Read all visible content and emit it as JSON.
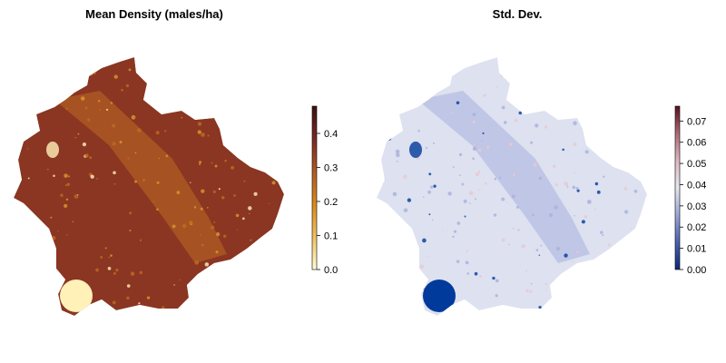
{
  "panels": [
    {
      "title": "Mean Density (males/ha)",
      "colorbar": {
        "ticks": [
          {
            "label": "0.0",
            "value": 0.0
          },
          {
            "label": "0.1",
            "value": 0.1
          },
          {
            "label": "0.2",
            "value": 0.2
          },
          {
            "label": "0.3",
            "value": 0.3
          },
          {
            "label": "0.4",
            "value": 0.4
          }
        ],
        "min": 0.0,
        "max": 0.48,
        "gradient": [
          "#fffdd0",
          "#f0c060",
          "#d88a1a",
          "#b05a24",
          "#7a2a24",
          "#3a1212"
        ]
      },
      "map_colors": {
        "base": "#8a3622",
        "ridge": "#c06a22",
        "bright": "#d89a30",
        "low": "#fff1b8"
      }
    },
    {
      "title": "Std. Dev.",
      "colorbar": {
        "ticks": [
          {
            "label": "0.00",
            "value": 0.0
          },
          {
            "label": "0.01",
            "value": 0.01
          },
          {
            "label": "0.02",
            "value": 0.02
          },
          {
            "label": "0.03",
            "value": 0.03
          },
          {
            "label": "0.04",
            "value": 0.04
          },
          {
            "label": "0.05",
            "value": 0.05
          },
          {
            "label": "0.06",
            "value": 0.06
          },
          {
            "label": "0.07",
            "value": 0.07
          }
        ],
        "min": 0.0,
        "max": 0.077,
        "gradient": [
          "#0b2a7a",
          "#4a62b0",
          "#9aa6d8",
          "#e6e6ee",
          "#dcb8c0",
          "#b06878",
          "#5a1020"
        ]
      },
      "map_colors": {
        "base": "#dde1f0",
        "ridge": "#a8b0dc",
        "bright": "#e8c8d0",
        "low": "#003a9a"
      }
    }
  ]
}
